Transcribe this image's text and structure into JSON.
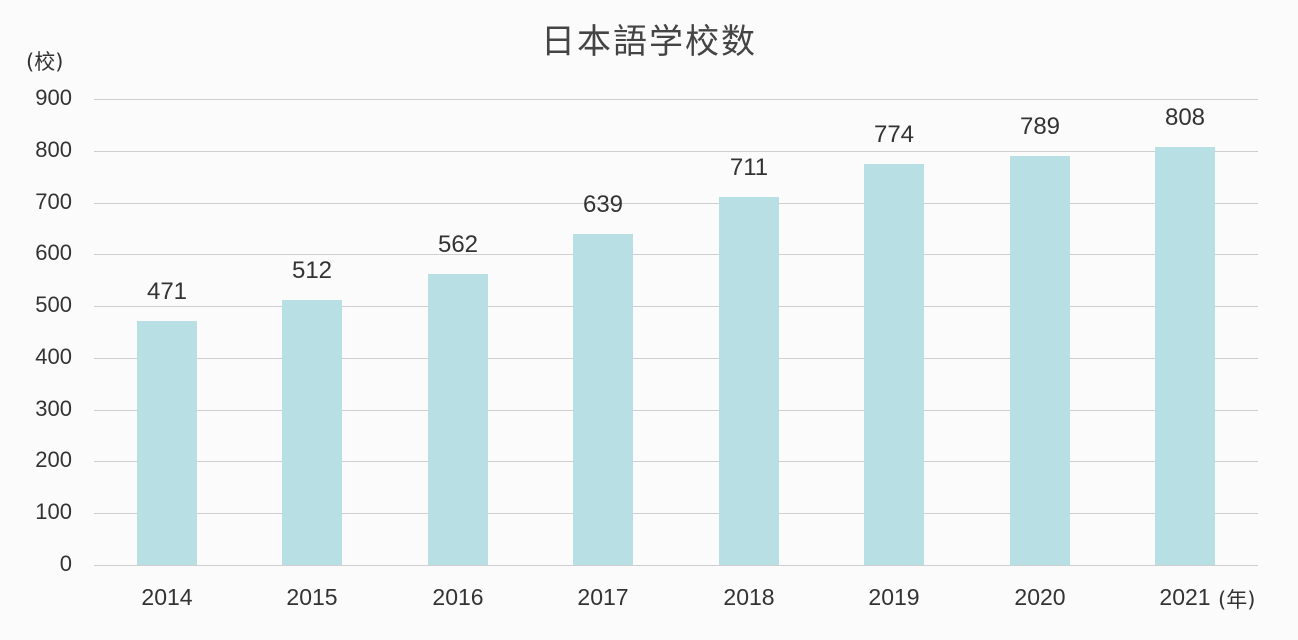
{
  "chart_data": {
    "type": "bar",
    "title": "日本語学校数",
    "xlabel": "(年)",
    "ylabel": "(校)",
    "categories": [
      "2014",
      "2015",
      "2016",
      "2017",
      "2018",
      "2019",
      "2020",
      "2021"
    ],
    "values": [
      471,
      512,
      562,
      639,
      711,
      774,
      789,
      808
    ],
    "ylim": [
      0,
      900
    ],
    "yticks": [
      0,
      100,
      200,
      300,
      400,
      500,
      600,
      700,
      800,
      900
    ],
    "grid": true,
    "legend": null,
    "data_labels": true,
    "bar_color": "#b8dfe4"
  }
}
